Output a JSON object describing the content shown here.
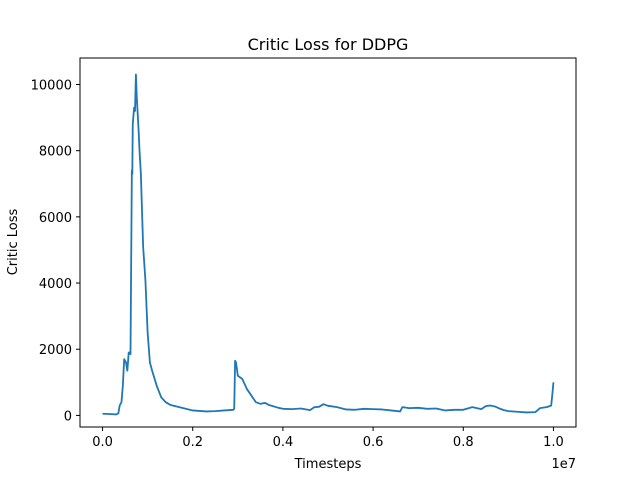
{
  "chart_data": {
    "type": "line",
    "title": "Critic Loss for DDPG",
    "xlabel": "Timesteps",
    "ylabel": "Critic Loss",
    "x_offset_label": "1e7",
    "xlim": [
      -0.05,
      1.05
    ],
    "ylim": [
      -350,
      10800
    ],
    "x_ticks": [
      0.0,
      0.2,
      0.4,
      0.6,
      0.8,
      1.0
    ],
    "x_tick_labels": [
      "0.0",
      "0.2",
      "0.4",
      "0.6",
      "0.8",
      "1.0"
    ],
    "y_ticks": [
      0,
      2000,
      4000,
      6000,
      8000,
      10000
    ],
    "y_tick_labels": [
      "0",
      "2000",
      "4000",
      "6000",
      "8000",
      "10000"
    ],
    "grid": false,
    "legend": "none",
    "series": [
      {
        "color": "#1f77b4",
        "points": [
          [
            0.0,
            50
          ],
          [
            0.02,
            40
          ],
          [
            0.03,
            30
          ],
          [
            0.035,
            60
          ],
          [
            0.038,
            300
          ],
          [
            0.042,
            400
          ],
          [
            0.045,
            900
          ],
          [
            0.048,
            1700
          ],
          [
            0.052,
            1600
          ],
          [
            0.055,
            1350
          ],
          [
            0.058,
            1900
          ],
          [
            0.06,
            1900
          ],
          [
            0.062,
            1850
          ],
          [
            0.065,
            7400
          ],
          [
            0.066,
            7300
          ],
          [
            0.067,
            8800
          ],
          [
            0.07,
            9300
          ],
          [
            0.072,
            9200
          ],
          [
            0.074,
            10300
          ],
          [
            0.076,
            9600
          ],
          [
            0.08,
            8600
          ],
          [
            0.082,
            8000
          ],
          [
            0.085,
            7300
          ],
          [
            0.09,
            5100
          ],
          [
            0.095,
            4100
          ],
          [
            0.1,
            2500
          ],
          [
            0.105,
            1600
          ],
          [
            0.11,
            1350
          ],
          [
            0.12,
            900
          ],
          [
            0.13,
            550
          ],
          [
            0.14,
            400
          ],
          [
            0.15,
            320
          ],
          [
            0.17,
            250
          ],
          [
            0.2,
            150
          ],
          [
            0.23,
            120
          ],
          [
            0.25,
            130
          ],
          [
            0.27,
            150
          ],
          [
            0.29,
            170
          ],
          [
            0.292,
            200
          ],
          [
            0.294,
            1650
          ],
          [
            0.296,
            1600
          ],
          [
            0.3,
            1200
          ],
          [
            0.31,
            1100
          ],
          [
            0.32,
            800
          ],
          [
            0.33,
            600
          ],
          [
            0.34,
            400
          ],
          [
            0.35,
            350
          ],
          [
            0.36,
            380
          ],
          [
            0.37,
            310
          ],
          [
            0.39,
            230
          ],
          [
            0.4,
            200
          ],
          [
            0.42,
            190
          ],
          [
            0.44,
            210
          ],
          [
            0.46,
            160
          ],
          [
            0.47,
            250
          ],
          [
            0.48,
            260
          ],
          [
            0.49,
            340
          ],
          [
            0.5,
            290
          ],
          [
            0.52,
            250
          ],
          [
            0.54,
            180
          ],
          [
            0.56,
            170
          ],
          [
            0.58,
            200
          ],
          [
            0.6,
            190
          ],
          [
            0.62,
            180
          ],
          [
            0.64,
            150
          ],
          [
            0.66,
            120
          ],
          [
            0.665,
            250
          ],
          [
            0.68,
            220
          ],
          [
            0.7,
            230
          ],
          [
            0.72,
            200
          ],
          [
            0.74,
            210
          ],
          [
            0.76,
            150
          ],
          [
            0.78,
            170
          ],
          [
            0.8,
            170
          ],
          [
            0.82,
            250
          ],
          [
            0.84,
            190
          ],
          [
            0.85,
            280
          ],
          [
            0.86,
            300
          ],
          [
            0.87,
            270
          ],
          [
            0.88,
            210
          ],
          [
            0.89,
            160
          ],
          [
            0.9,
            130
          ],
          [
            0.92,
            110
          ],
          [
            0.94,
            90
          ],
          [
            0.96,
            100
          ],
          [
            0.97,
            220
          ],
          [
            0.985,
            250
          ],
          [
            0.995,
            300
          ],
          [
            0.998,
            700
          ],
          [
            1.0,
            1000
          ]
        ]
      }
    ]
  }
}
